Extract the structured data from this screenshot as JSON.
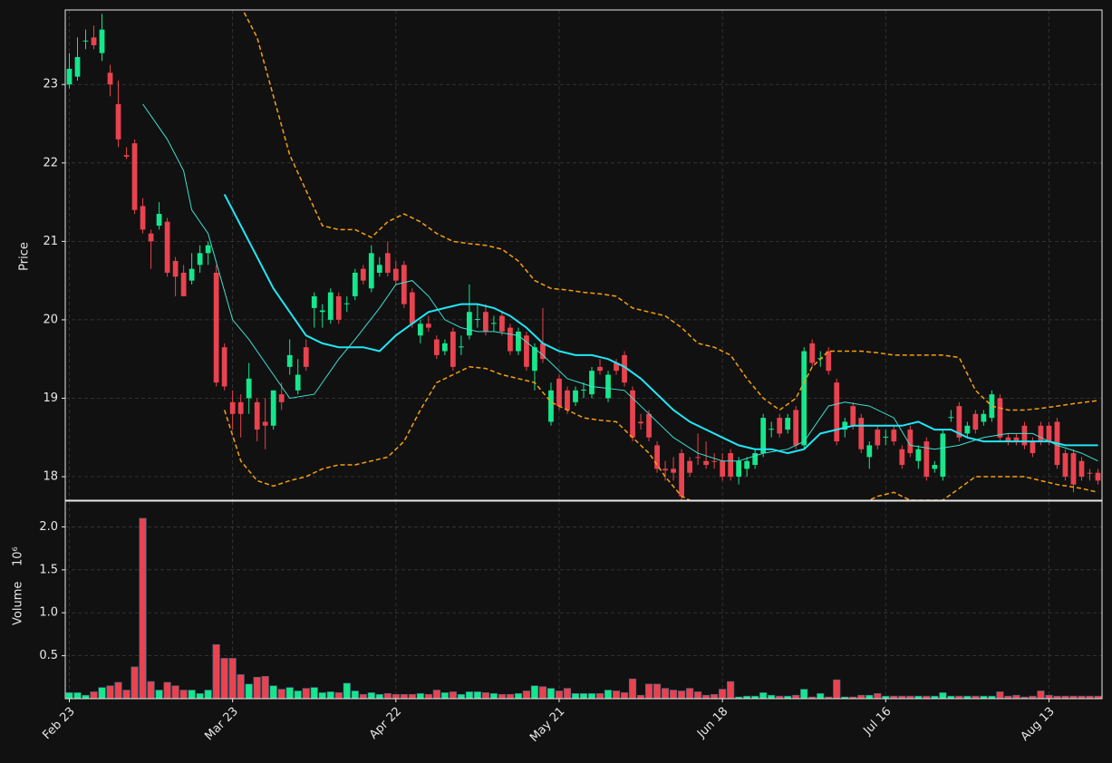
{
  "chart_data": {
    "type": "candlestick",
    "ylabel": "Price",
    "volume_label": "Volume",
    "volume_scale_label": "10⁶",
    "up_color": "#16e68c",
    "down_color": "#e8434f",
    "grid": true,
    "xlim": [
      -0.5,
      126.5
    ],
    "xticks": [
      {
        "value": 0,
        "label": "Feb 23"
      },
      {
        "value": 20,
        "label": "Mar 23"
      },
      {
        "value": 40,
        "label": "Apr 22"
      },
      {
        "value": 60,
        "label": "May 21"
      },
      {
        "value": 80,
        "label": "Jun 18"
      },
      {
        "value": 100,
        "label": "Jul 16"
      },
      {
        "value": 120,
        "label": "Aug 13"
      }
    ],
    "ylim": [
      17.7,
      23.95
    ],
    "yticks": [
      18,
      19,
      20,
      21,
      22,
      23
    ],
    "volume_ylim": [
      0,
      2.3
    ],
    "volume_yticks": [
      0.5,
      {
        "value": 1,
        "label": "1.0"
      },
      1.5,
      {
        "value": 2,
        "label": "2.0"
      }
    ],
    "open": [
      23.0,
      23.1,
      23.55,
      23.6,
      23.4,
      23.15,
      22.75,
      22.1,
      22.25,
      21.45,
      21.1,
      21.2,
      21.25,
      20.75,
      20.6,
      20.5,
      20.7,
      20.85,
      20.6,
      19.65,
      18.95,
      18.95,
      19.0,
      18.95,
      18.7,
      18.65,
      19.05,
      19.4,
      19.1,
      19.65,
      20.15,
      20.1,
      20.0,
      20.3,
      20.2,
      20.3,
      20.65,
      20.4,
      20.6,
      20.85,
      20.65,
      20.7,
      20.35,
      19.8,
      19.95,
      19.75,
      19.6,
      19.85,
      19.65,
      19.8,
      20.0,
      20.1,
      19.95,
      20.05,
      19.9,
      19.6,
      19.8,
      19.35,
      19.7,
      18.7,
      19.25,
      19.1,
      18.95,
      19.1,
      19.05,
      19.4,
      19.0,
      19.45,
      19.55,
      19.1,
      18.7,
      18.8,
      18.4,
      18.1,
      18.1,
      18.3,
      18.2,
      18.25,
      18.2,
      18.2,
      18.2,
      18.3,
      18.0,
      18.1,
      18.15,
      18.3,
      18.6,
      18.75,
      18.6,
      18.85,
      18.4,
      19.7,
      19.5,
      19.6,
      19.2,
      18.6,
      18.9,
      18.75,
      18.25,
      18.6,
      18.5,
      18.6,
      18.35,
      18.6,
      18.2,
      18.45,
      18.1,
      18.0,
      18.75,
      18.9,
      18.55,
      18.8,
      18.7,
      18.75,
      19.0,
      18.5,
      18.5,
      18.65,
      18.45,
      18.65,
      18.65,
      18.7,
      18.3,
      18.3,
      18.2,
      18.05,
      18.05
    ],
    "high": [
      23.4,
      23.6,
      23.7,
      23.75,
      23.9,
      23.25,
      23.05,
      22.2,
      22.3,
      21.55,
      21.15,
      21.5,
      21.3,
      20.8,
      20.7,
      20.85,
      20.95,
      21.0,
      20.7,
      19.7,
      19.1,
      19.05,
      19.45,
      19.0,
      19.0,
      19.1,
      19.2,
      19.75,
      19.5,
      19.75,
      20.35,
      20.2,
      20.4,
      20.35,
      20.3,
      20.65,
      20.7,
      20.95,
      20.8,
      21.0,
      20.75,
      20.75,
      20.4,
      20.0,
      20.05,
      19.8,
      19.75,
      19.9,
      19.8,
      20.45,
      20.2,
      20.2,
      20.05,
      20.1,
      19.95,
      19.9,
      19.85,
      19.7,
      20.15,
      19.2,
      19.3,
      19.15,
      19.15,
      19.2,
      19.4,
      19.5,
      19.35,
      19.5,
      19.6,
      19.15,
      18.8,
      18.85,
      18.45,
      18.2,
      18.25,
      18.35,
      18.25,
      18.55,
      18.45,
      18.3,
      18.3,
      18.35,
      18.25,
      18.25,
      18.35,
      18.8,
      18.7,
      18.8,
      18.8,
      18.9,
      19.65,
      19.75,
      19.6,
      19.65,
      19.25,
      18.75,
      18.95,
      18.8,
      18.45,
      18.65,
      18.6,
      18.65,
      18.4,
      18.65,
      18.4,
      18.5,
      18.2,
      18.6,
      18.85,
      18.95,
      18.7,
      18.85,
      18.85,
      19.1,
      19.05,
      18.55,
      18.55,
      18.7,
      18.5,
      18.7,
      18.7,
      18.75,
      18.35,
      18.35,
      18.25,
      18.1,
      18.1
    ],
    "low": [
      22.95,
      23.05,
      23.45,
      23.45,
      23.3,
      22.85,
      22.2,
      22.05,
      21.35,
      21.1,
      20.65,
      21.15,
      20.55,
      20.3,
      20.3,
      20.45,
      20.6,
      20.7,
      19.15,
      19.1,
      18.6,
      18.5,
      18.8,
      18.45,
      18.35,
      18.6,
      18.85,
      19.3,
      19.05,
      19.35,
      19.9,
      19.9,
      19.95,
      19.95,
      20.1,
      20.25,
      20.45,
      20.35,
      20.55,
      20.55,
      20.45,
      20.15,
      19.9,
      19.7,
      19.85,
      19.5,
      19.55,
      19.35,
      19.55,
      19.75,
      19.9,
      19.8,
      19.85,
      19.8,
      19.55,
      19.55,
      19.35,
      19.1,
      19.45,
      18.65,
      18.85,
      18.8,
      18.9,
      19.0,
      19.0,
      19.3,
      18.95,
      19.3,
      19.15,
      18.45,
      18.6,
      18.45,
      18.05,
      17.95,
      17.95,
      17.7,
      18.0,
      18.15,
      18.1,
      18.1,
      17.95,
      17.95,
      17.9,
      18.0,
      18.1,
      18.25,
      18.5,
      18.5,
      18.55,
      18.35,
      18.35,
      19.4,
      19.4,
      19.3,
      18.4,
      18.5,
      18.6,
      18.3,
      18.1,
      18.35,
      18.4,
      18.4,
      18.1,
      18.25,
      18.1,
      17.95,
      18.05,
      17.95,
      18.7,
      18.45,
      18.5,
      18.55,
      18.65,
      18.7,
      18.45,
      18.4,
      18.4,
      18.35,
      18.25,
      18.4,
      18.4,
      18.1,
      17.95,
      17.8,
      17.95,
      17.95,
      17.9
    ],
    "close": [
      23.2,
      23.35,
      23.56,
      23.5,
      23.7,
      23.0,
      22.3,
      22.08,
      21.4,
      21.15,
      21.0,
      21.35,
      20.6,
      20.55,
      20.3,
      20.65,
      20.85,
      20.95,
      19.2,
      19.15,
      18.8,
      18.8,
      19.25,
      18.6,
      18.65,
      19.1,
      18.95,
      19.55,
      19.3,
      19.4,
      20.3,
      20.12,
      20.35,
      20.0,
      20.21,
      20.6,
      20.5,
      20.85,
      20.7,
      20.6,
      20.5,
      20.2,
      19.95,
      19.95,
      19.9,
      19.55,
      19.7,
      19.4,
      19.66,
      20.1,
      20.01,
      19.85,
      19.96,
      19.85,
      19.6,
      19.85,
      19.4,
      19.65,
      19.5,
      19.1,
      18.9,
      18.85,
      19.1,
      19.11,
      19.35,
      19.35,
      19.3,
      19.35,
      19.2,
      18.5,
      18.68,
      18.5,
      18.1,
      18.08,
      18.05,
      17.75,
      18.05,
      18.24,
      18.15,
      18.19,
      18.0,
      18.0,
      18.2,
      18.2,
      18.3,
      18.75,
      18.61,
      18.55,
      18.75,
      18.4,
      19.6,
      19.45,
      19.51,
      19.35,
      18.45,
      18.7,
      18.65,
      18.35,
      18.4,
      18.4,
      18.51,
      18.45,
      18.15,
      18.3,
      18.35,
      18.0,
      18.15,
      18.55,
      18.76,
      18.5,
      18.65,
      18.6,
      18.8,
      19.05,
      18.5,
      18.45,
      18.45,
      18.4,
      18.3,
      18.45,
      18.45,
      18.15,
      18.0,
      17.9,
      18.0,
      18.04,
      17.95
    ],
    "volume": [
      0.07,
      0.07,
      0.04,
      0.08,
      0.13,
      0.15,
      0.19,
      0.1,
      0.37,
      2.1,
      0.2,
      0.1,
      0.19,
      0.15,
      0.1,
      0.1,
      0.06,
      0.1,
      0.63,
      0.47,
      0.47,
      0.28,
      0.17,
      0.25,
      0.26,
      0.15,
      0.11,
      0.13,
      0.09,
      0.12,
      0.13,
      0.07,
      0.08,
      0.07,
      0.18,
      0.09,
      0.05,
      0.07,
      0.05,
      0.06,
      0.05,
      0.05,
      0.05,
      0.06,
      0.05,
      0.1,
      0.07,
      0.08,
      0.05,
      0.08,
      0.08,
      0.07,
      0.06,
      0.05,
      0.05,
      0.06,
      0.09,
      0.15,
      0.14,
      0.12,
      0.09,
      0.12,
      0.06,
      0.06,
      0.06,
      0.06,
      0.1,
      0.09,
      0.07,
      0.23,
      0.04,
      0.17,
      0.17,
      0.12,
      0.1,
      0.09,
      0.12,
      0.08,
      0.04,
      0.05,
      0.11,
      0.2,
      0.02,
      0.03,
      0.03,
      0.07,
      0.04,
      0.03,
      0.03,
      0.04,
      0.11,
      0.02,
      0.06,
      0.02,
      0.22,
      0.02,
      0.02,
      0.04,
      0.04,
      0.06,
      0.03,
      0.03,
      0.03,
      0.03,
      0.03,
      0.03,
      0.03,
      0.07,
      0.03,
      0.03,
      0.03,
      0.03,
      0.03,
      0.03,
      0.08,
      0.03,
      0.04,
      0.02,
      0.03,
      0.09,
      0.04,
      0.03,
      0.03,
      0.03,
      0.03,
      0.03,
      0.03
    ],
    "overlays": [
      {
        "color": "#3ee0d0",
        "width": 1,
        "dashed": false,
        "x": [
          9,
          12,
          14,
          15,
          17,
          20,
          22,
          25,
          27,
          30,
          33,
          35,
          38,
          40,
          42,
          44,
          46,
          48,
          50,
          52,
          55,
          58,
          61,
          64,
          68,
          71,
          74,
          77,
          80,
          82,
          85,
          88,
          90,
          93,
          95,
          98,
          101,
          103,
          106,
          109,
          112,
          115,
          118,
          121,
          124,
          126
        ],
        "values": [
          22.75,
          22.3,
          21.9,
          21.4,
          21.1,
          20.0,
          19.75,
          19.3,
          19.0,
          19.05,
          19.5,
          19.75,
          20.15,
          20.45,
          20.5,
          20.3,
          20.0,
          19.9,
          19.85,
          19.85,
          19.8,
          19.55,
          19.25,
          19.15,
          19.1,
          18.8,
          18.5,
          18.3,
          18.2,
          18.2,
          18.3,
          18.35,
          18.45,
          18.9,
          18.95,
          18.9,
          18.75,
          18.4,
          18.35,
          18.4,
          18.5,
          18.55,
          18.55,
          18.4,
          18.3,
          18.2
        ]
      },
      {
        "color": "#22e6f5",
        "width": 2,
        "dashed": false,
        "x": [
          19,
          21,
          23,
          25,
          27,
          29,
          31,
          33,
          36,
          38,
          40,
          42,
          44,
          46,
          48,
          50,
          52,
          54,
          56,
          58,
          60,
          62,
          64,
          66,
          68,
          70,
          72,
          74,
          76,
          78,
          80,
          82,
          84,
          86,
          88,
          90,
          92,
          94,
          96,
          98,
          100,
          102,
          104,
          106,
          108,
          110,
          112,
          114,
          116,
          118,
          120,
          122,
          124,
          126
        ],
        "values": [
          21.6,
          21.2,
          20.8,
          20.4,
          20.1,
          19.8,
          19.7,
          19.65,
          19.65,
          19.6,
          19.8,
          19.95,
          20.1,
          20.15,
          20.2,
          20.2,
          20.15,
          20.05,
          19.9,
          19.7,
          19.6,
          19.55,
          19.55,
          19.5,
          19.4,
          19.25,
          19.05,
          18.85,
          18.7,
          18.6,
          18.5,
          18.4,
          18.35,
          18.35,
          18.3,
          18.35,
          18.55,
          18.6,
          18.65,
          18.65,
          18.65,
          18.65,
          18.7,
          18.6,
          18.6,
          18.5,
          18.45,
          18.45,
          18.45,
          18.45,
          18.45,
          18.4,
          18.4,
          18.4
        ]
      },
      {
        "color": "#f5a00f",
        "width": 1.5,
        "dashed": true,
        "x": [
          21,
          23,
          25,
          27,
          29,
          31,
          33,
          35,
          37,
          39,
          41,
          43,
          45,
          47,
          49,
          51,
          53,
          55,
          57,
          59,
          61,
          63,
          65,
          67,
          69,
          71,
          73,
          75,
          77,
          79,
          81,
          83,
          85,
          87,
          89,
          91,
          93,
          95,
          97,
          99,
          101,
          103,
          105,
          107,
          109,
          111,
          113,
          115,
          117,
          119,
          121,
          123,
          126
        ],
        "values": [
          24.0,
          23.6,
          22.85,
          22.1,
          21.65,
          21.2,
          21.15,
          21.15,
          21.05,
          21.25,
          21.35,
          21.25,
          21.1,
          21.0,
          20.97,
          20.95,
          20.9,
          20.75,
          20.5,
          20.4,
          20.38,
          20.35,
          20.33,
          20.3,
          20.15,
          20.1,
          20.05,
          19.9,
          19.7,
          19.65,
          19.55,
          19.25,
          19.0,
          18.85,
          19.0,
          19.4,
          19.6,
          19.6,
          19.6,
          19.58,
          19.55,
          19.55,
          19.55,
          19.55,
          19.52,
          19.1,
          18.9,
          18.85,
          18.85,
          18.87,
          18.9,
          18.93,
          18.97
        ]
      },
      {
        "color": "#f5a00f",
        "width": 1.5,
        "dashed": true,
        "x": [
          19,
          21,
          23,
          25,
          27,
          29,
          31,
          33,
          35,
          37,
          39,
          41,
          43,
          45,
          47,
          49,
          51,
          53,
          55,
          57,
          59,
          61,
          63,
          65,
          67,
          69,
          71,
          73,
          75,
          77,
          79,
          81,
          83,
          85,
          87,
          89,
          91,
          93,
          95,
          97,
          99,
          101,
          103,
          105,
          107,
          109,
          111,
          113,
          115,
          117,
          119,
          121,
          124,
          126
        ],
        "values": [
          18.85,
          18.2,
          17.95,
          17.88,
          17.95,
          18.0,
          18.1,
          18.15,
          18.15,
          18.2,
          18.25,
          18.45,
          18.85,
          19.2,
          19.3,
          19.4,
          19.38,
          19.3,
          19.25,
          19.2,
          18.95,
          18.85,
          18.75,
          18.72,
          18.7,
          18.5,
          18.3,
          18.0,
          17.75,
          17.65,
          17.6,
          17.5,
          17.6,
          17.7,
          17.5,
          17.4,
          17.5,
          17.55,
          17.6,
          17.65,
          17.75,
          17.8,
          17.7,
          17.7,
          17.7,
          17.85,
          18.0,
          18.0,
          18.0,
          18.0,
          17.95,
          17.9,
          17.85,
          17.8
        ]
      }
    ]
  }
}
